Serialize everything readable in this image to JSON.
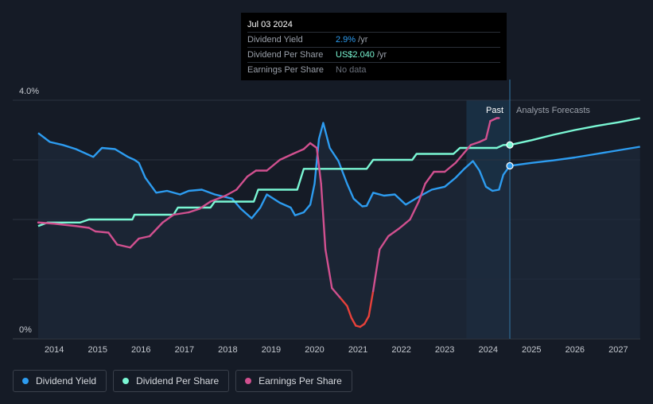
{
  "tooltip": {
    "date": "Jul 03 2024",
    "rows": [
      {
        "label": "Dividend Yield",
        "value": "2.9%",
        "unit": " /yr"
      },
      {
        "label": "Dividend Per Share",
        "value": "US$2.040",
        "unit": " /yr"
      },
      {
        "label": "Earnings Per Share",
        "value": "No data",
        "unit": ""
      }
    ]
  },
  "legend": [
    {
      "label": "Dividend Yield",
      "color": "#2d9cf0"
    },
    {
      "label": "Dividend Per Share",
      "color": "#7af7d4"
    },
    {
      "label": "Earnings Per Share",
      "color": "#d1508f"
    }
  ],
  "chart_data": {
    "type": "line",
    "region_labels": {
      "past": "Past",
      "forecast": "Analysts Forecasts"
    },
    "y_tick_labels": [
      {
        "value": 4.0,
        "label": "4.0%"
      },
      {
        "value": 0,
        "label": "0%"
      }
    ],
    "x_tick_labels": [
      "2014",
      "2015",
      "2016",
      "2017",
      "2018",
      "2019",
      "2020",
      "2021",
      "2022",
      "2023",
      "2024",
      "2025",
      "2026",
      "2027"
    ],
    "xlim": [
      2013.6,
      2027.5
    ],
    "ylim": [
      0,
      4.0
    ],
    "tooltip_x": 2024.5,
    "past_end": 2024.5,
    "colors": {
      "yield": "#2d9cf0",
      "dps": "#7af7d4",
      "eps": "#d1508f",
      "eps_negative": "#e8413a",
      "background": "#151b26",
      "plot_shade": "#1e2a3a",
      "past_band": "#1a3349"
    },
    "series": [
      {
        "name": "Dividend Yield",
        "key": "yield",
        "points": [
          [
            2013.63,
            3.45
          ],
          [
            2013.9,
            3.3
          ],
          [
            2014.2,
            3.25
          ],
          [
            2014.5,
            3.18
          ],
          [
            2014.9,
            3.05
          ],
          [
            2015.1,
            3.2
          ],
          [
            2015.4,
            3.18
          ],
          [
            2015.7,
            3.05
          ],
          [
            2015.85,
            3.0
          ],
          [
            2015.95,
            2.95
          ],
          [
            2016.1,
            2.7
          ],
          [
            2016.35,
            2.45
          ],
          [
            2016.6,
            2.48
          ],
          [
            2016.9,
            2.42
          ],
          [
            2017.1,
            2.48
          ],
          [
            2017.4,
            2.5
          ],
          [
            2017.7,
            2.42
          ],
          [
            2018.1,
            2.35
          ],
          [
            2018.3,
            2.18
          ],
          [
            2018.55,
            2.02
          ],
          [
            2018.75,
            2.2
          ],
          [
            2018.9,
            2.42
          ],
          [
            2019.2,
            2.28
          ],
          [
            2019.45,
            2.2
          ],
          [
            2019.55,
            2.07
          ],
          [
            2019.75,
            2.12
          ],
          [
            2019.9,
            2.25
          ],
          [
            2020.0,
            2.6
          ],
          [
            2020.1,
            3.35
          ],
          [
            2020.2,
            3.62
          ],
          [
            2020.35,
            3.2
          ],
          [
            2020.55,
            2.98
          ],
          [
            2020.75,
            2.6
          ],
          [
            2020.9,
            2.35
          ],
          [
            2021.1,
            2.22
          ],
          [
            2021.2,
            2.23
          ],
          [
            2021.35,
            2.45
          ],
          [
            2021.6,
            2.4
          ],
          [
            2021.85,
            2.42
          ],
          [
            2022.1,
            2.25
          ],
          [
            2022.4,
            2.38
          ],
          [
            2022.7,
            2.5
          ],
          [
            2023.0,
            2.55
          ],
          [
            2023.25,
            2.7
          ],
          [
            2023.45,
            2.85
          ],
          [
            2023.65,
            2.98
          ],
          [
            2023.8,
            2.82
          ],
          [
            2023.95,
            2.55
          ],
          [
            2024.1,
            2.48
          ],
          [
            2024.25,
            2.5
          ],
          [
            2024.35,
            2.75
          ],
          [
            2024.5,
            2.9
          ],
          [
            2025.0,
            2.95
          ],
          [
            2025.5,
            2.99
          ],
          [
            2026.0,
            3.04
          ],
          [
            2026.5,
            3.1
          ],
          [
            2027.0,
            3.16
          ],
          [
            2027.5,
            3.22
          ]
        ]
      },
      {
        "name": "Dividend Per Share",
        "key": "dps",
        "points": [
          [
            2013.63,
            1.89
          ],
          [
            2013.85,
            1.95
          ],
          [
            2014.6,
            1.95
          ],
          [
            2014.8,
            2.0
          ],
          [
            2015.8,
            2.0
          ],
          [
            2015.85,
            2.08
          ],
          [
            2016.75,
            2.08
          ],
          [
            2016.85,
            2.2
          ],
          [
            2017.6,
            2.2
          ],
          [
            2017.7,
            2.3
          ],
          [
            2018.6,
            2.3
          ],
          [
            2018.7,
            2.5
          ],
          [
            2019.6,
            2.5
          ],
          [
            2019.75,
            2.85
          ],
          [
            2020.6,
            2.85
          ],
          [
            2020.75,
            2.85
          ],
          [
            2021.2,
            2.85
          ],
          [
            2021.35,
            3.0
          ],
          [
            2022.25,
            3.0
          ],
          [
            2022.35,
            3.1
          ],
          [
            2023.2,
            3.1
          ],
          [
            2023.35,
            3.2
          ],
          [
            2024.2,
            3.2
          ],
          [
            2024.35,
            3.25
          ],
          [
            2024.5,
            3.25
          ],
          [
            2025.0,
            3.33
          ],
          [
            2025.5,
            3.42
          ],
          [
            2026.0,
            3.5
          ],
          [
            2026.5,
            3.57
          ],
          [
            2027.0,
            3.63
          ],
          [
            2027.5,
            3.7
          ]
        ]
      },
      {
        "name": "Earnings Per Share",
        "key": "eps",
        "points": [
          [
            2013.63,
            1.95
          ],
          [
            2014.0,
            1.93
          ],
          [
            2014.5,
            1.89
          ],
          [
            2014.8,
            1.86
          ],
          [
            2014.95,
            1.8
          ],
          [
            2015.25,
            1.78
          ],
          [
            2015.45,
            1.58
          ],
          [
            2015.75,
            1.53
          ],
          [
            2015.95,
            1.68
          ],
          [
            2016.2,
            1.72
          ],
          [
            2016.5,
            1.95
          ],
          [
            2016.75,
            2.08
          ],
          [
            2017.1,
            2.12
          ],
          [
            2017.35,
            2.18
          ],
          [
            2017.6,
            2.3
          ],
          [
            2017.95,
            2.4
          ],
          [
            2018.2,
            2.5
          ],
          [
            2018.45,
            2.72
          ],
          [
            2018.65,
            2.82
          ],
          [
            2018.9,
            2.82
          ],
          [
            2019.2,
            3.0
          ],
          [
            2019.5,
            3.1
          ],
          [
            2019.75,
            3.18
          ],
          [
            2019.9,
            3.28
          ],
          [
            2020.05,
            3.2
          ],
          [
            2020.15,
            2.6
          ],
          [
            2020.25,
            1.5
          ],
          [
            2020.4,
            0.85
          ],
          [
            2020.6,
            0.68
          ],
          [
            2020.75,
            0.55
          ],
          [
            2020.85,
            0.35
          ],
          [
            2020.95,
            0.22
          ],
          [
            2021.05,
            0.2
          ],
          [
            2021.15,
            0.25
          ],
          [
            2021.25,
            0.38
          ],
          [
            2021.35,
            0.8
          ],
          [
            2021.5,
            1.5
          ],
          [
            2021.7,
            1.72
          ],
          [
            2021.95,
            1.85
          ],
          [
            2022.2,
            2.0
          ],
          [
            2022.4,
            2.3
          ],
          [
            2022.55,
            2.6
          ],
          [
            2022.75,
            2.8
          ],
          [
            2023.0,
            2.8
          ],
          [
            2023.25,
            2.95
          ],
          [
            2023.45,
            3.12
          ],
          [
            2023.6,
            3.25
          ],
          [
            2023.8,
            3.3
          ],
          [
            2023.95,
            3.35
          ],
          [
            2024.05,
            3.65
          ],
          [
            2024.2,
            3.7
          ],
          [
            2024.25,
            3.7
          ]
        ]
      }
    ],
    "markers": [
      {
        "key": "dps",
        "x": 2024.5,
        "y": 3.25
      },
      {
        "key": "yield",
        "x": 2024.5,
        "y": 2.9
      }
    ]
  }
}
